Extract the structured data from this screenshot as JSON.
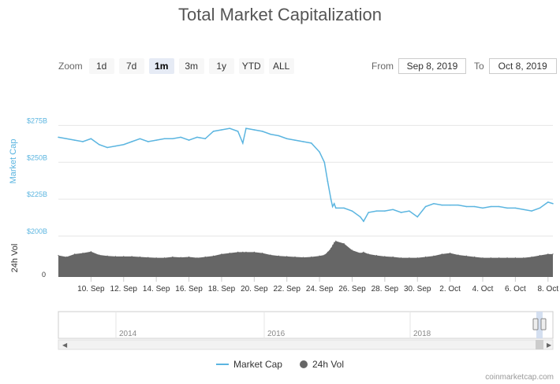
{
  "chart_data": {
    "type": "area",
    "title": "Total Market Capitalization",
    "series": [
      {
        "name": "Market Cap",
        "axis_label": "Market Cap",
        "type": "line",
        "color": "#5bb5e0",
        "y_ticks": [
          "$200B",
          "$225B",
          "$250B",
          "$275B"
        ],
        "ylim": [
          200,
          280
        ],
        "x": [
          8.0,
          8.5,
          9.0,
          9.5,
          10.0,
          10.5,
          11.0,
          11.5,
          12.0,
          12.5,
          13.0,
          13.5,
          14.0,
          14.5,
          15.0,
          15.5,
          16.0,
          16.5,
          17.0,
          17.5,
          18.0,
          18.5,
          19.0,
          19.3,
          19.5,
          20.0,
          20.5,
          21.0,
          21.5,
          22.0,
          22.5,
          23.0,
          23.5,
          24.0,
          24.3,
          24.5,
          24.7,
          24.8,
          24.9,
          25.0,
          25.5,
          26.0,
          26.5,
          26.7,
          27.0,
          27.5,
          28.0,
          28.5,
          29.0,
          29.5,
          30.0,
          30.5,
          31.0,
          31.5,
          32.0,
          32.5,
          33.0,
          33.5,
          34.0,
          34.5,
          35.0,
          35.5,
          36.0,
          36.5,
          37.0,
          37.5,
          38.0,
          38.3
        ],
        "values": [
          267,
          266,
          265,
          264,
          266,
          262,
          260,
          261,
          262,
          264,
          266,
          264,
          265,
          266,
          266,
          267,
          265,
          267,
          266,
          271,
          272,
          273,
          271,
          263,
          273,
          272,
          271,
          269,
          268,
          266,
          265,
          264,
          263,
          257,
          250,
          237,
          225,
          220,
          222,
          219,
          219,
          217,
          213,
          210,
          216,
          217,
          217,
          218,
          216,
          217,
          213,
          220,
          222,
          221,
          221,
          221,
          220,
          220,
          219,
          220,
          220,
          219,
          219,
          218,
          217,
          219,
          223,
          222
        ]
      },
      {
        "name": "24h Vol",
        "axis_label": "24h Vol",
        "type": "area",
        "color": "#666666",
        "y_ticks": [
          "0"
        ],
        "values": [
          45,
          42,
          48,
          50,
          53,
          46,
          44,
          43,
          43,
          43,
          42,
          41,
          40,
          40,
          42,
          41,
          42,
          40,
          42,
          44,
          48,
          50,
          52,
          52,
          52,
          52,
          50,
          46,
          44,
          43,
          42,
          41,
          42,
          44,
          46,
          52,
          60,
          66,
          72,
          75,
          70,
          56,
          50,
          52,
          48,
          45,
          43,
          42,
          40,
          40,
          40,
          42,
          44,
          48,
          50,
          46,
          44,
          42,
          40,
          40,
          40,
          40,
          40,
          40,
          42,
          45,
          48,
          48
        ]
      }
    ],
    "x_ticks": [
      "10. Sep",
      "12. Sep",
      "14. Sep",
      "16. Sep",
      "18. Sep",
      "20. Sep",
      "22. Sep",
      "24. Sep",
      "26. Sep",
      "28. Sep",
      "30. Sep",
      "2. Oct",
      "4. Oct",
      "6. Oct",
      "8. Oct"
    ],
    "x_tick_days": [
      10,
      12,
      14,
      16,
      18,
      20,
      22,
      24,
      26,
      28,
      30,
      32,
      34,
      36,
      38
    ],
    "xlim": [
      8,
      38.3
    ],
    "navigator_ticks": [
      "2014",
      "2016",
      "2018"
    ],
    "legend_position": "bottom-center",
    "grid": true
  },
  "controls": {
    "zoom_label": "Zoom",
    "zoom_buttons": [
      "1d",
      "7d",
      "1m",
      "3m",
      "1y",
      "YTD",
      "ALL"
    ],
    "active_zoom": "1m",
    "from_label": "From",
    "from_value": "Sep 8, 2019",
    "to_label": "To",
    "to_value": "Oct 8, 2019"
  },
  "credit": "coinmarketcap.com",
  "legend": {
    "market_cap": "Market Cap",
    "vol": "24h Vol"
  }
}
